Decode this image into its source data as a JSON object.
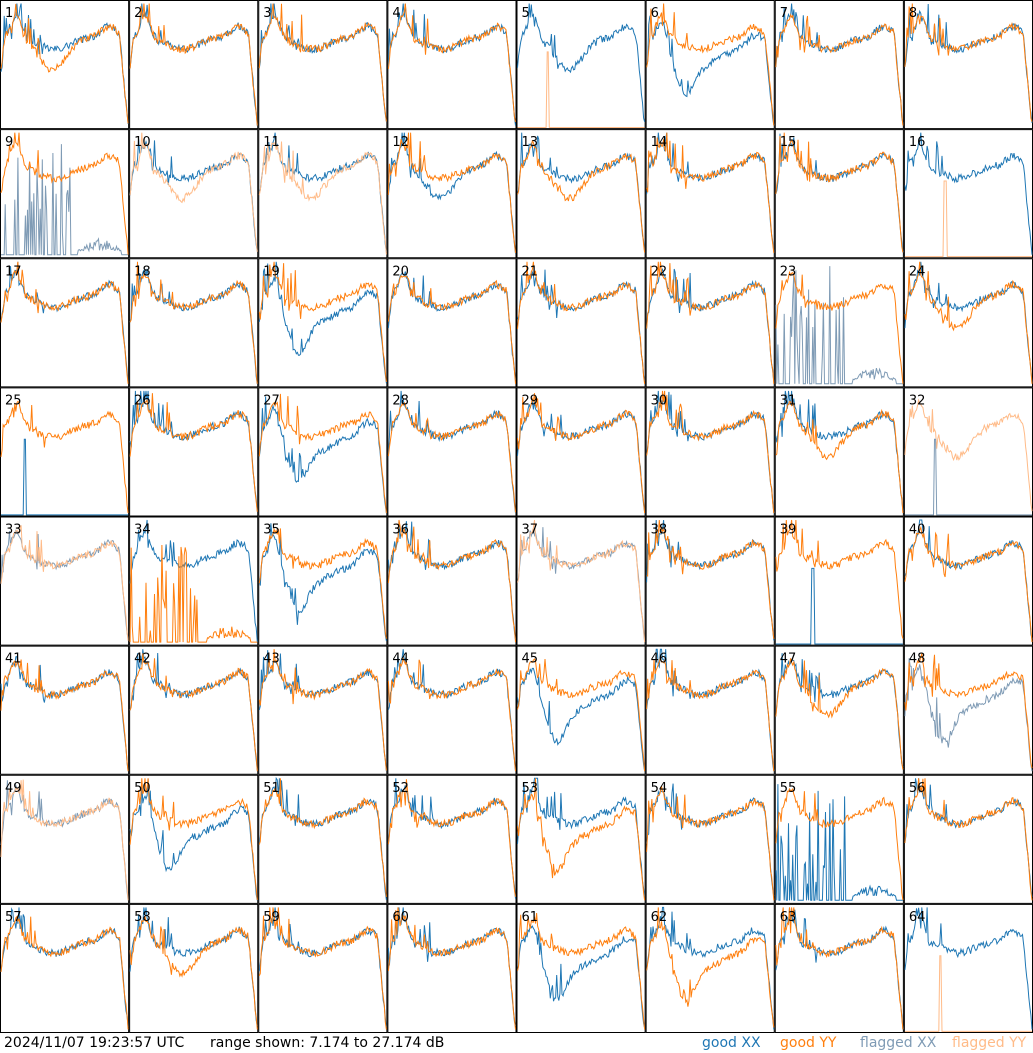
{
  "chart_data": {
    "type": "line",
    "layout": "8x8 small multiples",
    "panels": [
      {
        "id": "1",
        "status": "good",
        "xx": "bright",
        "yy": "dip"
      },
      {
        "id": "2",
        "status": "good"
      },
      {
        "id": "3",
        "status": "good"
      },
      {
        "id": "4",
        "status": "good"
      },
      {
        "id": "5",
        "status": "xx-only",
        "xx": "dip"
      },
      {
        "id": "6",
        "status": "good",
        "xx": "deepdip"
      },
      {
        "id": "7",
        "status": "good"
      },
      {
        "id": "8",
        "status": "good"
      },
      {
        "id": "9",
        "status": "xx-flagged-spikes"
      },
      {
        "id": "10",
        "status": "yy-flagged"
      },
      {
        "id": "11",
        "status": "yy-flagged"
      },
      {
        "id": "12",
        "status": "good",
        "xx": "dip"
      },
      {
        "id": "13",
        "status": "good",
        "yy": "dip"
      },
      {
        "id": "14",
        "status": "good"
      },
      {
        "id": "15",
        "status": "good"
      },
      {
        "id": "16",
        "status": "xx-only"
      },
      {
        "id": "17",
        "status": "good"
      },
      {
        "id": "18",
        "status": "good"
      },
      {
        "id": "19",
        "status": "good",
        "xx": "deepdip"
      },
      {
        "id": "20",
        "status": "good"
      },
      {
        "id": "21",
        "status": "good"
      },
      {
        "id": "22",
        "status": "good"
      },
      {
        "id": "23",
        "status": "xx-flagged-spikes"
      },
      {
        "id": "24",
        "status": "good",
        "yy": "dip"
      },
      {
        "id": "25",
        "status": "yy-only"
      },
      {
        "id": "26",
        "status": "good"
      },
      {
        "id": "27",
        "status": "good",
        "xx": "deepdip"
      },
      {
        "id": "28",
        "status": "good"
      },
      {
        "id": "29",
        "status": "good"
      },
      {
        "id": "30",
        "status": "good"
      },
      {
        "id": "31",
        "status": "good",
        "yy": "dip"
      },
      {
        "id": "32",
        "status": "yy-flagged-only"
      },
      {
        "id": "33",
        "status": "both-flagged"
      },
      {
        "id": "34",
        "status": "yy-spikes"
      },
      {
        "id": "35",
        "status": "good",
        "xx": "deepdip"
      },
      {
        "id": "36",
        "status": "good"
      },
      {
        "id": "37",
        "status": "both-flagged"
      },
      {
        "id": "38",
        "status": "good"
      },
      {
        "id": "39",
        "status": "yy-only"
      },
      {
        "id": "40",
        "status": "good"
      },
      {
        "id": "41",
        "status": "good"
      },
      {
        "id": "42",
        "status": "good"
      },
      {
        "id": "43",
        "status": "good"
      },
      {
        "id": "44",
        "status": "good"
      },
      {
        "id": "45",
        "status": "good",
        "xx": "deepdip"
      },
      {
        "id": "46",
        "status": "good"
      },
      {
        "id": "47",
        "status": "good",
        "yy": "dip"
      },
      {
        "id": "48",
        "status": "xx-flagged"
      },
      {
        "id": "49",
        "status": "both-flagged"
      },
      {
        "id": "50",
        "status": "good",
        "xx": "deepdip"
      },
      {
        "id": "51",
        "status": "good"
      },
      {
        "id": "52",
        "status": "good"
      },
      {
        "id": "53",
        "status": "good",
        "yy": "deepdip"
      },
      {
        "id": "54",
        "status": "good"
      },
      {
        "id": "55",
        "status": "xx-spikes"
      },
      {
        "id": "56",
        "status": "good"
      },
      {
        "id": "57",
        "status": "good"
      },
      {
        "id": "58",
        "status": "good",
        "yy": "dip"
      },
      {
        "id": "59",
        "status": "good"
      },
      {
        "id": "60",
        "status": "good"
      },
      {
        "id": "61",
        "status": "good",
        "xx": "deepdip"
      },
      {
        "id": "62",
        "status": "good",
        "yy": "deepdip"
      },
      {
        "id": "63",
        "status": "good"
      },
      {
        "id": "64",
        "status": "xx-only"
      }
    ],
    "range_min_db": 7.174,
    "range_max_db": 27.174,
    "legend": [
      {
        "label": "good XX",
        "color": "#1f77b4"
      },
      {
        "label": "good YY",
        "color": "#ff7f0e"
      },
      {
        "label": "flagged XX",
        "color": "#7f9bb5"
      },
      {
        "label": "flagged YY",
        "color": "#ffbb88"
      }
    ]
  },
  "footer": {
    "timestamp": "2024/11/07 19:23:57 UTC",
    "range": "range shown: 7.174 to 27.174 dB"
  }
}
